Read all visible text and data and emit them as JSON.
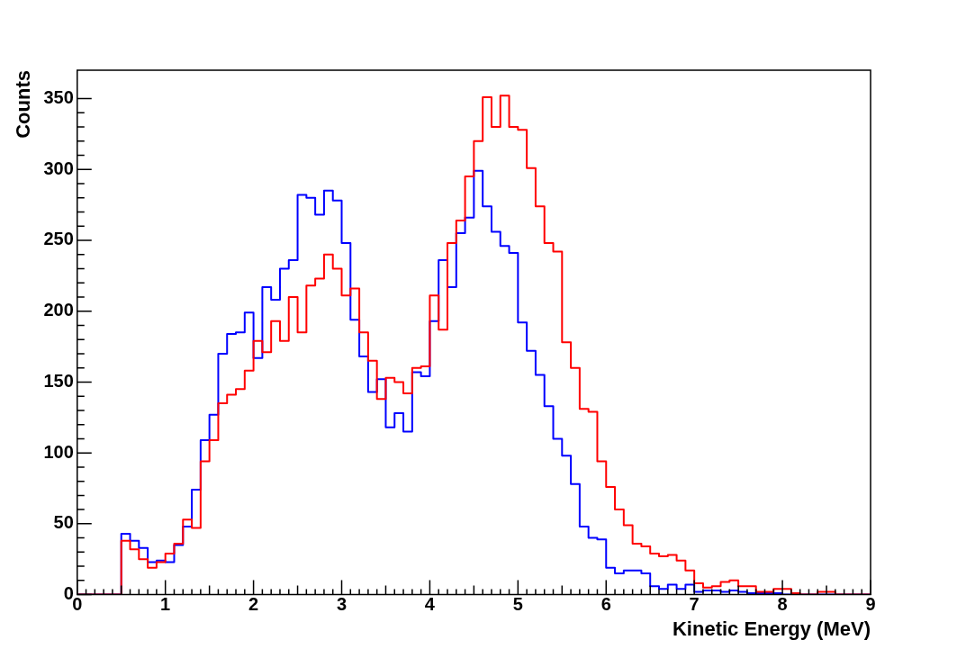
{
  "chart_data": {
    "type": "histogram",
    "xlabel": "Kinetic Energy (MeV)",
    "ylabel": "Counts",
    "bins": [
      0,
      0.1,
      0.2,
      0.3,
      0.4,
      0.5,
      0.6,
      0.7,
      0.8,
      0.9,
      1,
      1.1,
      1.2,
      1.3,
      1.4,
      1.5,
      1.6,
      1.7,
      1.8,
      1.9,
      2,
      2.1,
      2.2,
      2.3,
      2.4,
      2.5,
      2.6,
      2.7,
      2.8,
      2.9,
      3,
      3.1,
      3.2,
      3.3,
      3.4,
      3.5,
      3.6,
      3.7,
      3.8,
      3.9,
      4,
      4.1,
      4.2,
      4.3,
      4.4,
      4.5,
      4.6,
      4.7,
      4.8,
      4.9,
      5,
      5.1,
      5.2,
      5.3,
      5.4,
      5.5,
      5.6,
      5.7,
      5.8,
      5.9,
      6,
      6.1,
      6.2,
      6.3,
      6.4,
      6.5,
      6.6,
      6.7,
      6.8,
      6.9,
      7,
      7.1,
      7.2,
      7.3,
      7.4,
      7.5,
      7.6,
      7.7,
      7.8,
      7.9,
      8,
      8.1,
      8.2,
      8.3,
      8.4,
      8.5,
      8.6,
      8.7,
      8.8,
      8.9,
      9
    ],
    "series": [
      {
        "color": "#ff0000",
        "values": [
          0,
          0,
          0,
          0,
          0,
          38,
          32,
          25,
          19,
          23,
          29,
          36,
          53,
          47,
          94,
          109,
          135,
          141,
          145,
          158,
          179,
          171,
          193,
          179,
          210,
          185,
          218,
          223,
          240,
          230,
          211,
          216,
          185,
          165,
          138,
          153,
          150,
          142,
          160,
          161,
          211,
          187,
          248,
          264,
          295,
          320,
          351,
          330,
          352,
          330,
          328,
          301,
          274,
          248,
          242,
          178,
          160,
          131,
          129,
          94,
          76,
          60,
          49,
          36,
          34,
          29,
          27,
          28,
          24,
          17,
          8,
          5,
          6,
          9,
          10,
          6,
          6,
          2,
          2,
          4,
          4,
          1,
          0,
          0,
          2,
          2,
          0,
          0,
          0,
          0
        ]
      },
      {
        "color": "#0000ff",
        "values": [
          0,
          0,
          0,
          0,
          0,
          43,
          38,
          33,
          23,
          24,
          23,
          35,
          48,
          74,
          109,
          127,
          170,
          184,
          185,
          199,
          167,
          217,
          208,
          230,
          236,
          282,
          280,
          268,
          285,
          278,
          248,
          194,
          168,
          143,
          152,
          118,
          128,
          115,
          157,
          154,
          193,
          236,
          217,
          255,
          266,
          299,
          274,
          256,
          246,
          241,
          192,
          172,
          155,
          133,
          110,
          98,
          78,
          48,
          40,
          39,
          19,
          15,
          17,
          17,
          15,
          6,
          4,
          7,
          4,
          7,
          2,
          3,
          3,
          2,
          3,
          2,
          1,
          1,
          1,
          1,
          0,
          0,
          0,
          0,
          0,
          0,
          0,
          0,
          0,
          0
        ]
      }
    ],
    "xlim": [
      0,
      9
    ],
    "xticks": [
      0,
      1,
      2,
      3,
      4,
      5,
      6,
      7,
      8,
      9
    ],
    "ylim": [
      0,
      370
    ],
    "yticks": [
      0,
      50,
      100,
      150,
      200,
      250,
      300,
      350
    ],
    "grid": false,
    "legend": false
  }
}
